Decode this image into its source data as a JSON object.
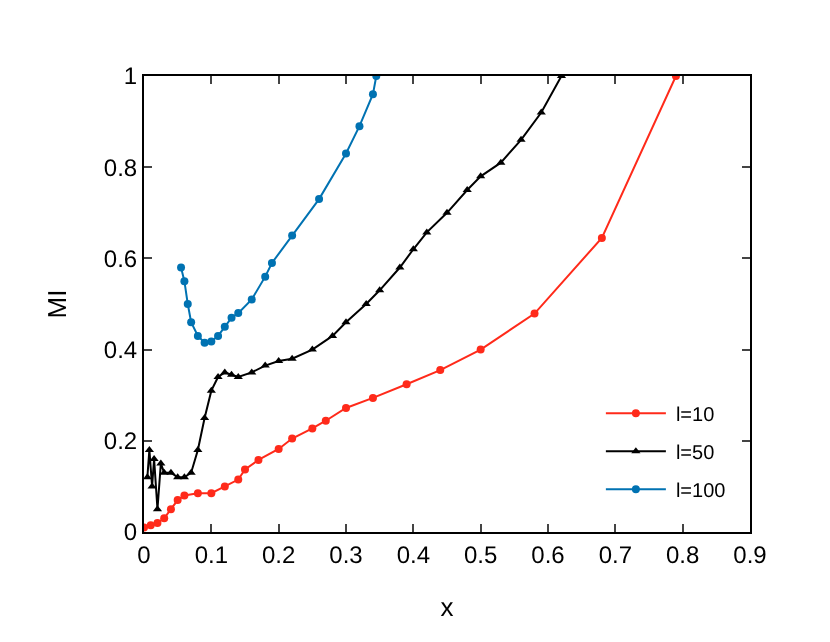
{
  "chart_data": {
    "type": "line",
    "xlabel": "x",
    "ylabel": "MI",
    "xlim": [
      0,
      0.9
    ],
    "ylim": [
      0,
      1
    ],
    "xticks": [
      0,
      0.1,
      0.2,
      0.3,
      0.4,
      0.5,
      0.6,
      0.7,
      0.8,
      0.9
    ],
    "yticks": [
      0,
      0.2,
      0.4,
      0.6,
      0.8,
      1
    ],
    "legend": "bottom right",
    "line_style": "solid",
    "series": [
      {
        "name": "l=10",
        "color": "#ff2a1a",
        "marker": "circle",
        "x": [
          0,
          0.01,
          0.02,
          0.03,
          0.04,
          0.05,
          0.06,
          0.08,
          0.1,
          0.12,
          0.14,
          0.15,
          0.17,
          0.2,
          0.22,
          0.25,
          0.27,
          0.3,
          0.34,
          0.39,
          0.44,
          0.5,
          0.58,
          0.68,
          0.79
        ],
        "values": [
          0.01,
          0.015,
          0.02,
          0.03,
          0.05,
          0.07,
          0.08,
          0.085,
          0.085,
          0.1,
          0.115,
          0.137,
          0.158,
          0.182,
          0.205,
          0.227,
          0.244,
          0.272,
          0.294,
          0.324,
          0.355,
          0.4,
          0.479,
          0.645,
          1.0
        ]
      },
      {
        "name": "l=50",
        "color": "#000000",
        "marker": "triangle",
        "x": [
          0.005,
          0.008,
          0.012,
          0.015,
          0.02,
          0.025,
          0.03,
          0.04,
          0.05,
          0.06,
          0.07,
          0.08,
          0.09,
          0.1,
          0.11,
          0.12,
          0.13,
          0.14,
          0.16,
          0.18,
          0.2,
          0.22,
          0.25,
          0.28,
          0.3,
          0.33,
          0.35,
          0.38,
          0.4,
          0.42,
          0.45,
          0.48,
          0.5,
          0.53,
          0.56,
          0.59,
          0.62
        ],
        "values": [
          0.12,
          0.18,
          0.1,
          0.16,
          0.05,
          0.15,
          0.13,
          0.13,
          0.12,
          0.12,
          0.13,
          0.18,
          0.25,
          0.31,
          0.34,
          0.35,
          0.345,
          0.34,
          0.35,
          0.365,
          0.375,
          0.38,
          0.4,
          0.43,
          0.46,
          0.5,
          0.53,
          0.58,
          0.62,
          0.657,
          0.7,
          0.75,
          0.78,
          0.81,
          0.86,
          0.92,
          1.0
        ]
      },
      {
        "name": "l=100",
        "color": "#0072b2",
        "marker": "circle",
        "x": [
          0.055,
          0.06,
          0.065,
          0.07,
          0.08,
          0.09,
          0.1,
          0.11,
          0.12,
          0.13,
          0.14,
          0.16,
          0.18,
          0.19,
          0.22,
          0.26,
          0.3,
          0.32,
          0.34,
          0.345
        ],
        "values": [
          0.58,
          0.55,
          0.5,
          0.46,
          0.43,
          0.415,
          0.418,
          0.43,
          0.45,
          0.47,
          0.48,
          0.51,
          0.56,
          0.59,
          0.65,
          0.73,
          0.83,
          0.89,
          0.96,
          1.0
        ]
      }
    ]
  }
}
